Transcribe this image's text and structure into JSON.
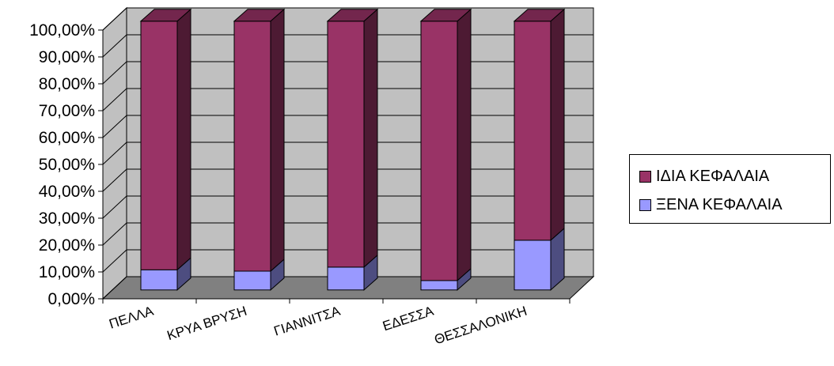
{
  "chart_data": {
    "type": "bar",
    "stacked": true,
    "percent_stacked": true,
    "three_d": true,
    "categories": [
      "ΠΕΛΛΑ",
      "ΚΡΥΑ ΒΡΥΣΗ",
      "ΓΙΑΝΝΙΤΣΑ",
      "ΕΔΕΣΣΑ",
      "ΘΕΣΣΑΛΟΝΙΚΗ"
    ],
    "series": [
      {
        "name": "ΞΕΝΑ ΚΕΦΑΛΑΙΑ",
        "color": "#9999ff",
        "values": [
          7.5,
          7.0,
          8.5,
          3.5,
          18.5
        ]
      },
      {
        "name": "ΙΔΙΑ ΚΕΦΑΛΑΙΑ",
        "color": "#993366",
        "values": [
          92.5,
          93.0,
          91.5,
          96.5,
          81.5
        ]
      }
    ],
    "legend_order": [
      1,
      0
    ],
    "ylim": [
      0,
      100
    ],
    "yticks": [
      "0,00%",
      "10,00%",
      "20,00%",
      "30,00%",
      "40,00%",
      "50,00%",
      "60,00%",
      "70,00%",
      "80,00%",
      "90,00%",
      "100,00%"
    ],
    "grid": true,
    "legend_position": "right",
    "wall_color": "#c0c0c0",
    "floor_color": "#808080",
    "xlabel": "",
    "ylabel": "",
    "title": ""
  }
}
